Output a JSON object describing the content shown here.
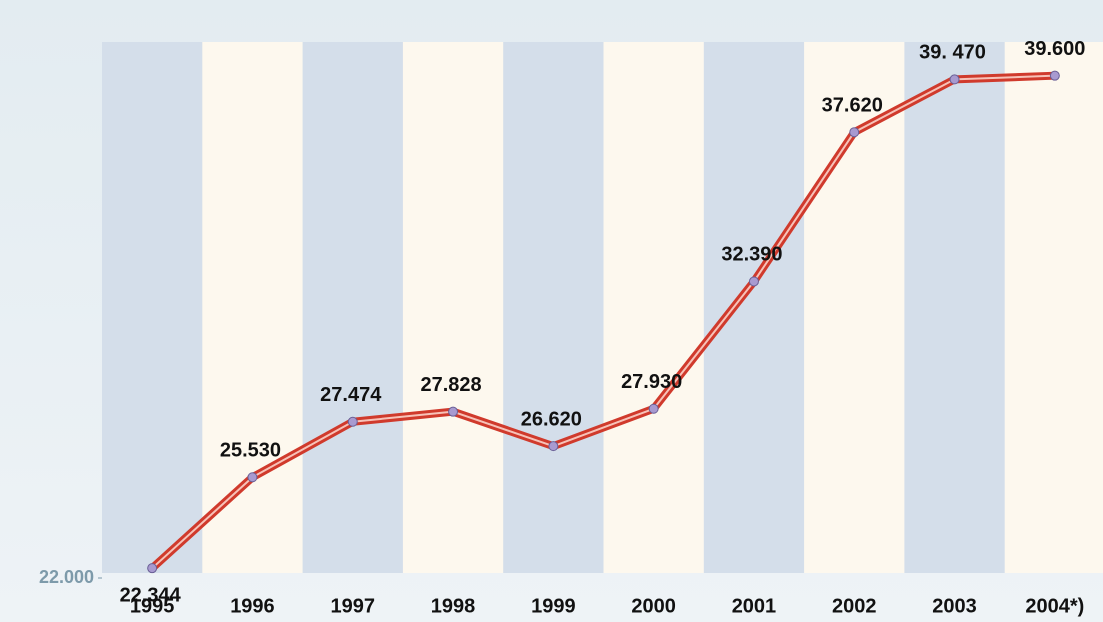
{
  "chart_data": {
    "type": "line",
    "categories": [
      "1995",
      "1996",
      "1997",
      "1998",
      "1999",
      "2000",
      "2001",
      "2002",
      "2003",
      "2004*)"
    ],
    "series": [
      {
        "color": "#d03a2c",
        "values": [
          22344,
          25530,
          27474,
          27828,
          26620,
          27930,
          32390,
          37620,
          39470,
          39600
        ],
        "value_labels": [
          "22.344",
          "25.530",
          "27.474",
          "27.828",
          "26.620",
          "27.930",
          "32.390",
          "37.620",
          "39. 470",
          "39.600"
        ]
      }
    ],
    "ylim": [
      22000,
      40500
    ],
    "yticks": [
      {
        "value": 22000,
        "label": "22.000"
      }
    ]
  }
}
